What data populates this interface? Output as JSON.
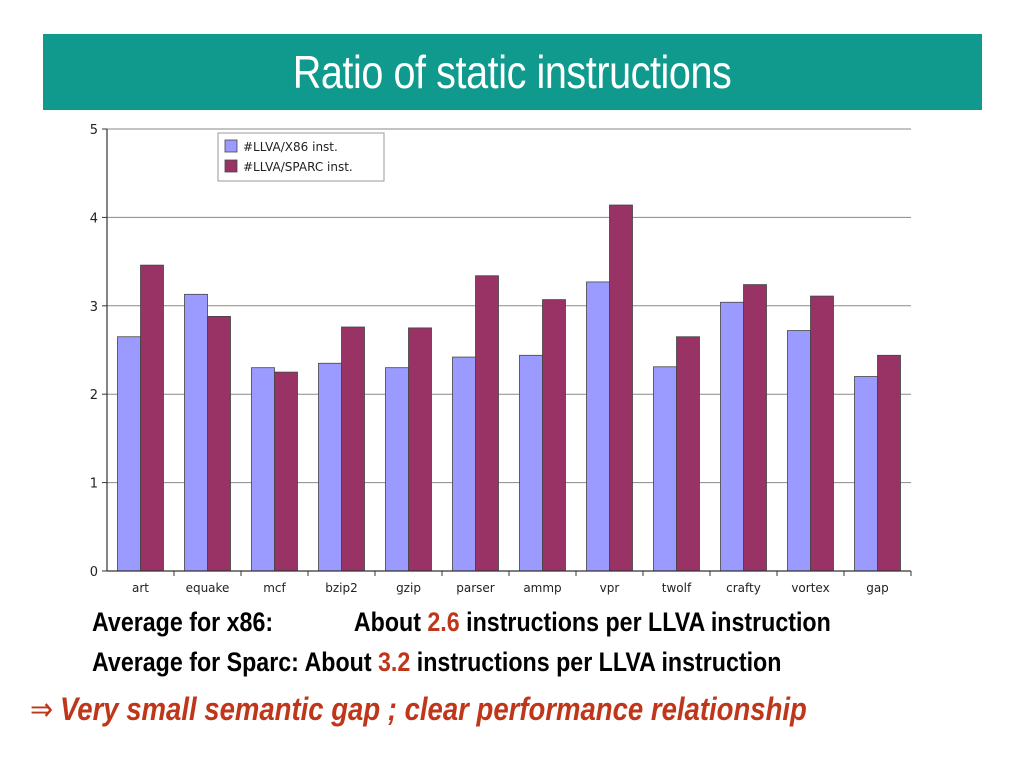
{
  "slide": {
    "title": "Ratio of static instructions"
  },
  "summary": {
    "x86": {
      "label": "Average for x86:",
      "prefix": "About",
      "value": "2.6",
      "suffix": "instructions per LLVA instruction"
    },
    "sparc": {
      "label": "Average for Sparc:",
      "prefix": "About",
      "value": "3.2",
      "suffix": "instructions per LLVA instruction"
    }
  },
  "conclusion": {
    "arrow": "⇒",
    "text": "Very small semantic gap ; clear performance relationship"
  },
  "colors": {
    "title_bg": "#109a8e",
    "x86_bar": "#9b9bff",
    "sparc_bar": "#993366",
    "highlight": "#c0361a"
  },
  "chart_data": {
    "type": "bar",
    "title": "",
    "xlabel": "",
    "ylabel": "",
    "ylim": [
      0,
      5
    ],
    "yticks": [
      0,
      1,
      2,
      3,
      4,
      5
    ],
    "grid": true,
    "legend_position": "top-left",
    "categories": [
      "art",
      "equake",
      "mcf",
      "bzip2",
      "gzip",
      "parser",
      "ammp",
      "vpr",
      "twolf",
      "crafty",
      "vortex",
      "gap"
    ],
    "series": [
      {
        "name": "#LLVA/X86 inst.",
        "color": "#9b9bff",
        "values": [
          2.65,
          3.13,
          2.3,
          2.35,
          2.3,
          2.42,
          2.44,
          3.27,
          2.31,
          3.04,
          2.72,
          2.2
        ]
      },
      {
        "name": "#LLVA/SPARC inst.",
        "color": "#993366",
        "values": [
          3.46,
          2.88,
          2.25,
          2.76,
          2.75,
          3.34,
          3.07,
          4.14,
          2.65,
          3.24,
          3.11,
          2.44
        ]
      }
    ]
  }
}
